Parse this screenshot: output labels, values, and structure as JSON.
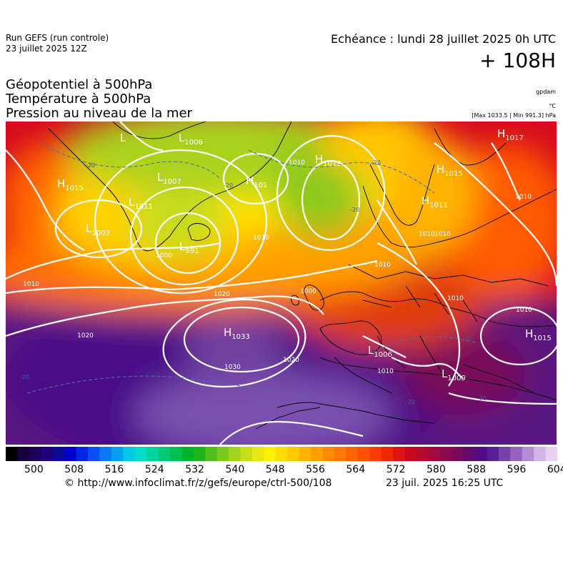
{
  "header": {
    "run_title": "Run GEFS (run controle)",
    "run_date": "23 juillet 2025 12Z",
    "valid_time": "Echéance : lundi 28 juillet 2025 0h UTC",
    "lead_time": "+ 108H"
  },
  "parameters": [
    "Géopotentiel à 500hPa",
    "Température à 500hPa",
    "Pression au niveau de la mer"
  ],
  "units": {
    "geopotential": "gpdam",
    "temperature": "°C",
    "pressure_range": "[Max 1033.5 | Min 991.3] hPa"
  },
  "map": {
    "pressure_centers": [
      {
        "type": "H",
        "value": "1033"
      },
      {
        "type": "L",
        "value": "991"
      },
      {
        "type": "L",
        "value": "1003"
      },
      {
        "type": "H",
        "value": "1015"
      },
      {
        "type": "H",
        "value": "1012"
      },
      {
        "type": "H",
        "value": "1017"
      },
      {
        "type": "H",
        "value": "1015"
      },
      {
        "type": "L",
        "value": "1006"
      },
      {
        "type": "H",
        "value": "101"
      },
      {
        "type": "L",
        "value": "1011"
      },
      {
        "type": "L",
        "value": "1007"
      },
      {
        "type": "L",
        "value": "1006"
      },
      {
        "type": "L",
        "value": "1009"
      },
      {
        "type": "H",
        "value": "1011"
      },
      {
        "type": "H",
        "value": "1015"
      },
      {
        "type": "L",
        "value": ""
      }
    ],
    "isobar_labels": [
      "1020",
      "1020",
      "1030",
      "1020",
      "1010",
      "1010",
      "1010",
      "1000",
      "1010",
      "1010",
      "1010",
      "1010",
      "1010",
      "1010",
      "1000",
      "1010"
    ],
    "temperature_labels": [
      "-20",
      "-20",
      "-20",
      "-20",
      "-20",
      "-20",
      "-20",
      "-20"
    ]
  },
  "colorbar": {
    "ticks": [
      "500",
      "508",
      "516",
      "524",
      "532",
      "540",
      "548",
      "556",
      "564",
      "572",
      "580",
      "588",
      "596",
      "604"
    ],
    "colors": [
      "#000000",
      "#17003c",
      "#1e005c",
      "#1e007a",
      "#0a0a96",
      "#0000c8",
      "#0028e6",
      "#0a50f0",
      "#0a78f0",
      "#00a0f0",
      "#00c8e6",
      "#00dcc8",
      "#00d2a0",
      "#00c878",
      "#00be50",
      "#00b428",
      "#1eb41e",
      "#50be1e",
      "#78c81e",
      "#a0d21e",
      "#c8dc1e",
      "#e6e614",
      "#fff000",
      "#ffdc00",
      "#ffc800",
      "#ffb400",
      "#ffa000",
      "#ff8c00",
      "#ff7800",
      "#ff6400",
      "#ff5000",
      "#ff3c00",
      "#f02800",
      "#dc1414",
      "#c80a1e",
      "#b40a2d",
      "#a00a3c",
      "#8c0a50",
      "#780a5a",
      "#640a6e",
      "#500a82",
      "#5a1e96",
      "#7841aa",
      "#9664be",
      "#b48cd2",
      "#d2b4e6",
      "#e6d2f0"
    ]
  },
  "footer": {
    "credit": "© http://www.infoclimat.fr/z/gefs/europe/ctrl-500/108",
    "generated": "23 juil. 2025 16:25 UTC"
  }
}
